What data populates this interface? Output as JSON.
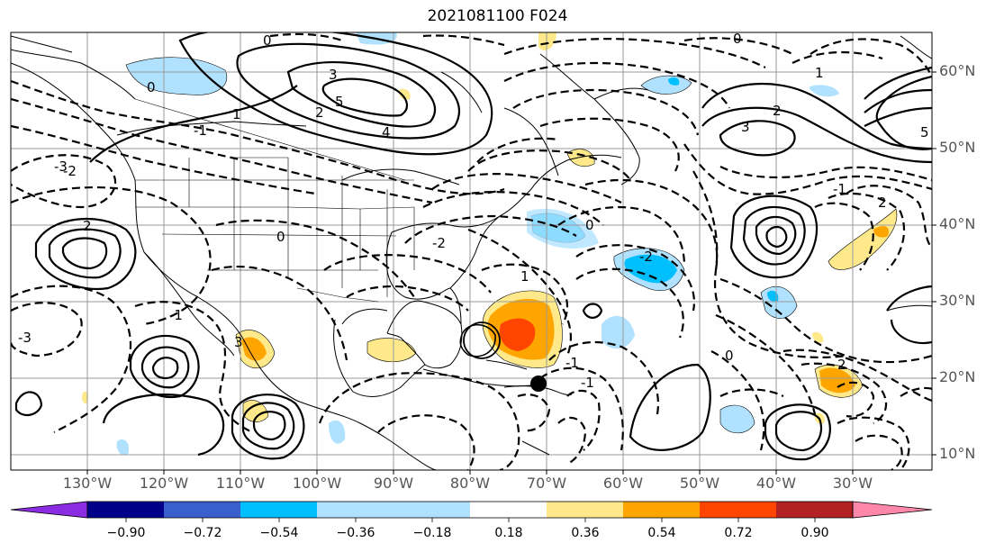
{
  "title": "2021081100 F024",
  "lat_labels": [
    "60°N",
    "50°N",
    "40°N",
    "30°N",
    "20°N",
    "10°N"
  ],
  "lon_labels": [
    "130°W",
    "120°W",
    "110°W",
    "100°W",
    "90°W",
    "80°W",
    "70°W",
    "60°W",
    "50°W",
    "40°W",
    "30°W"
  ],
  "colorbar": {
    "tick_labels": [
      "−0.90",
      "−0.72",
      "−0.54",
      "−0.36",
      "−0.18",
      "0.18",
      "0.36",
      "0.54",
      "0.72",
      "0.90"
    ],
    "colors": [
      "#8b2be2",
      "#00008b",
      "#3a5fcd",
      "#00bfff",
      "#b0e2ff",
      "#ffffff",
      "#ffe98a",
      "#ffa500",
      "#ff4500",
      "#b22222",
      "#ff88aa"
    ]
  },
  "contour_labels": [
    "0",
    "3",
    "5",
    "4",
    "2",
    "1",
    "-1",
    "-2",
    "-3",
    "0",
    "2",
    "-1",
    "3",
    "5",
    "1",
    "2",
    "0",
    "-2",
    "-1",
    "2",
    "0",
    "-1",
    "1",
    "2",
    "3",
    "-3",
    "0",
    "-2",
    "-1",
    "0"
  ],
  "colors": {
    "grid": "#999999",
    "coast": "#000000",
    "contour": "#000000",
    "marker": "#000000"
  }
}
